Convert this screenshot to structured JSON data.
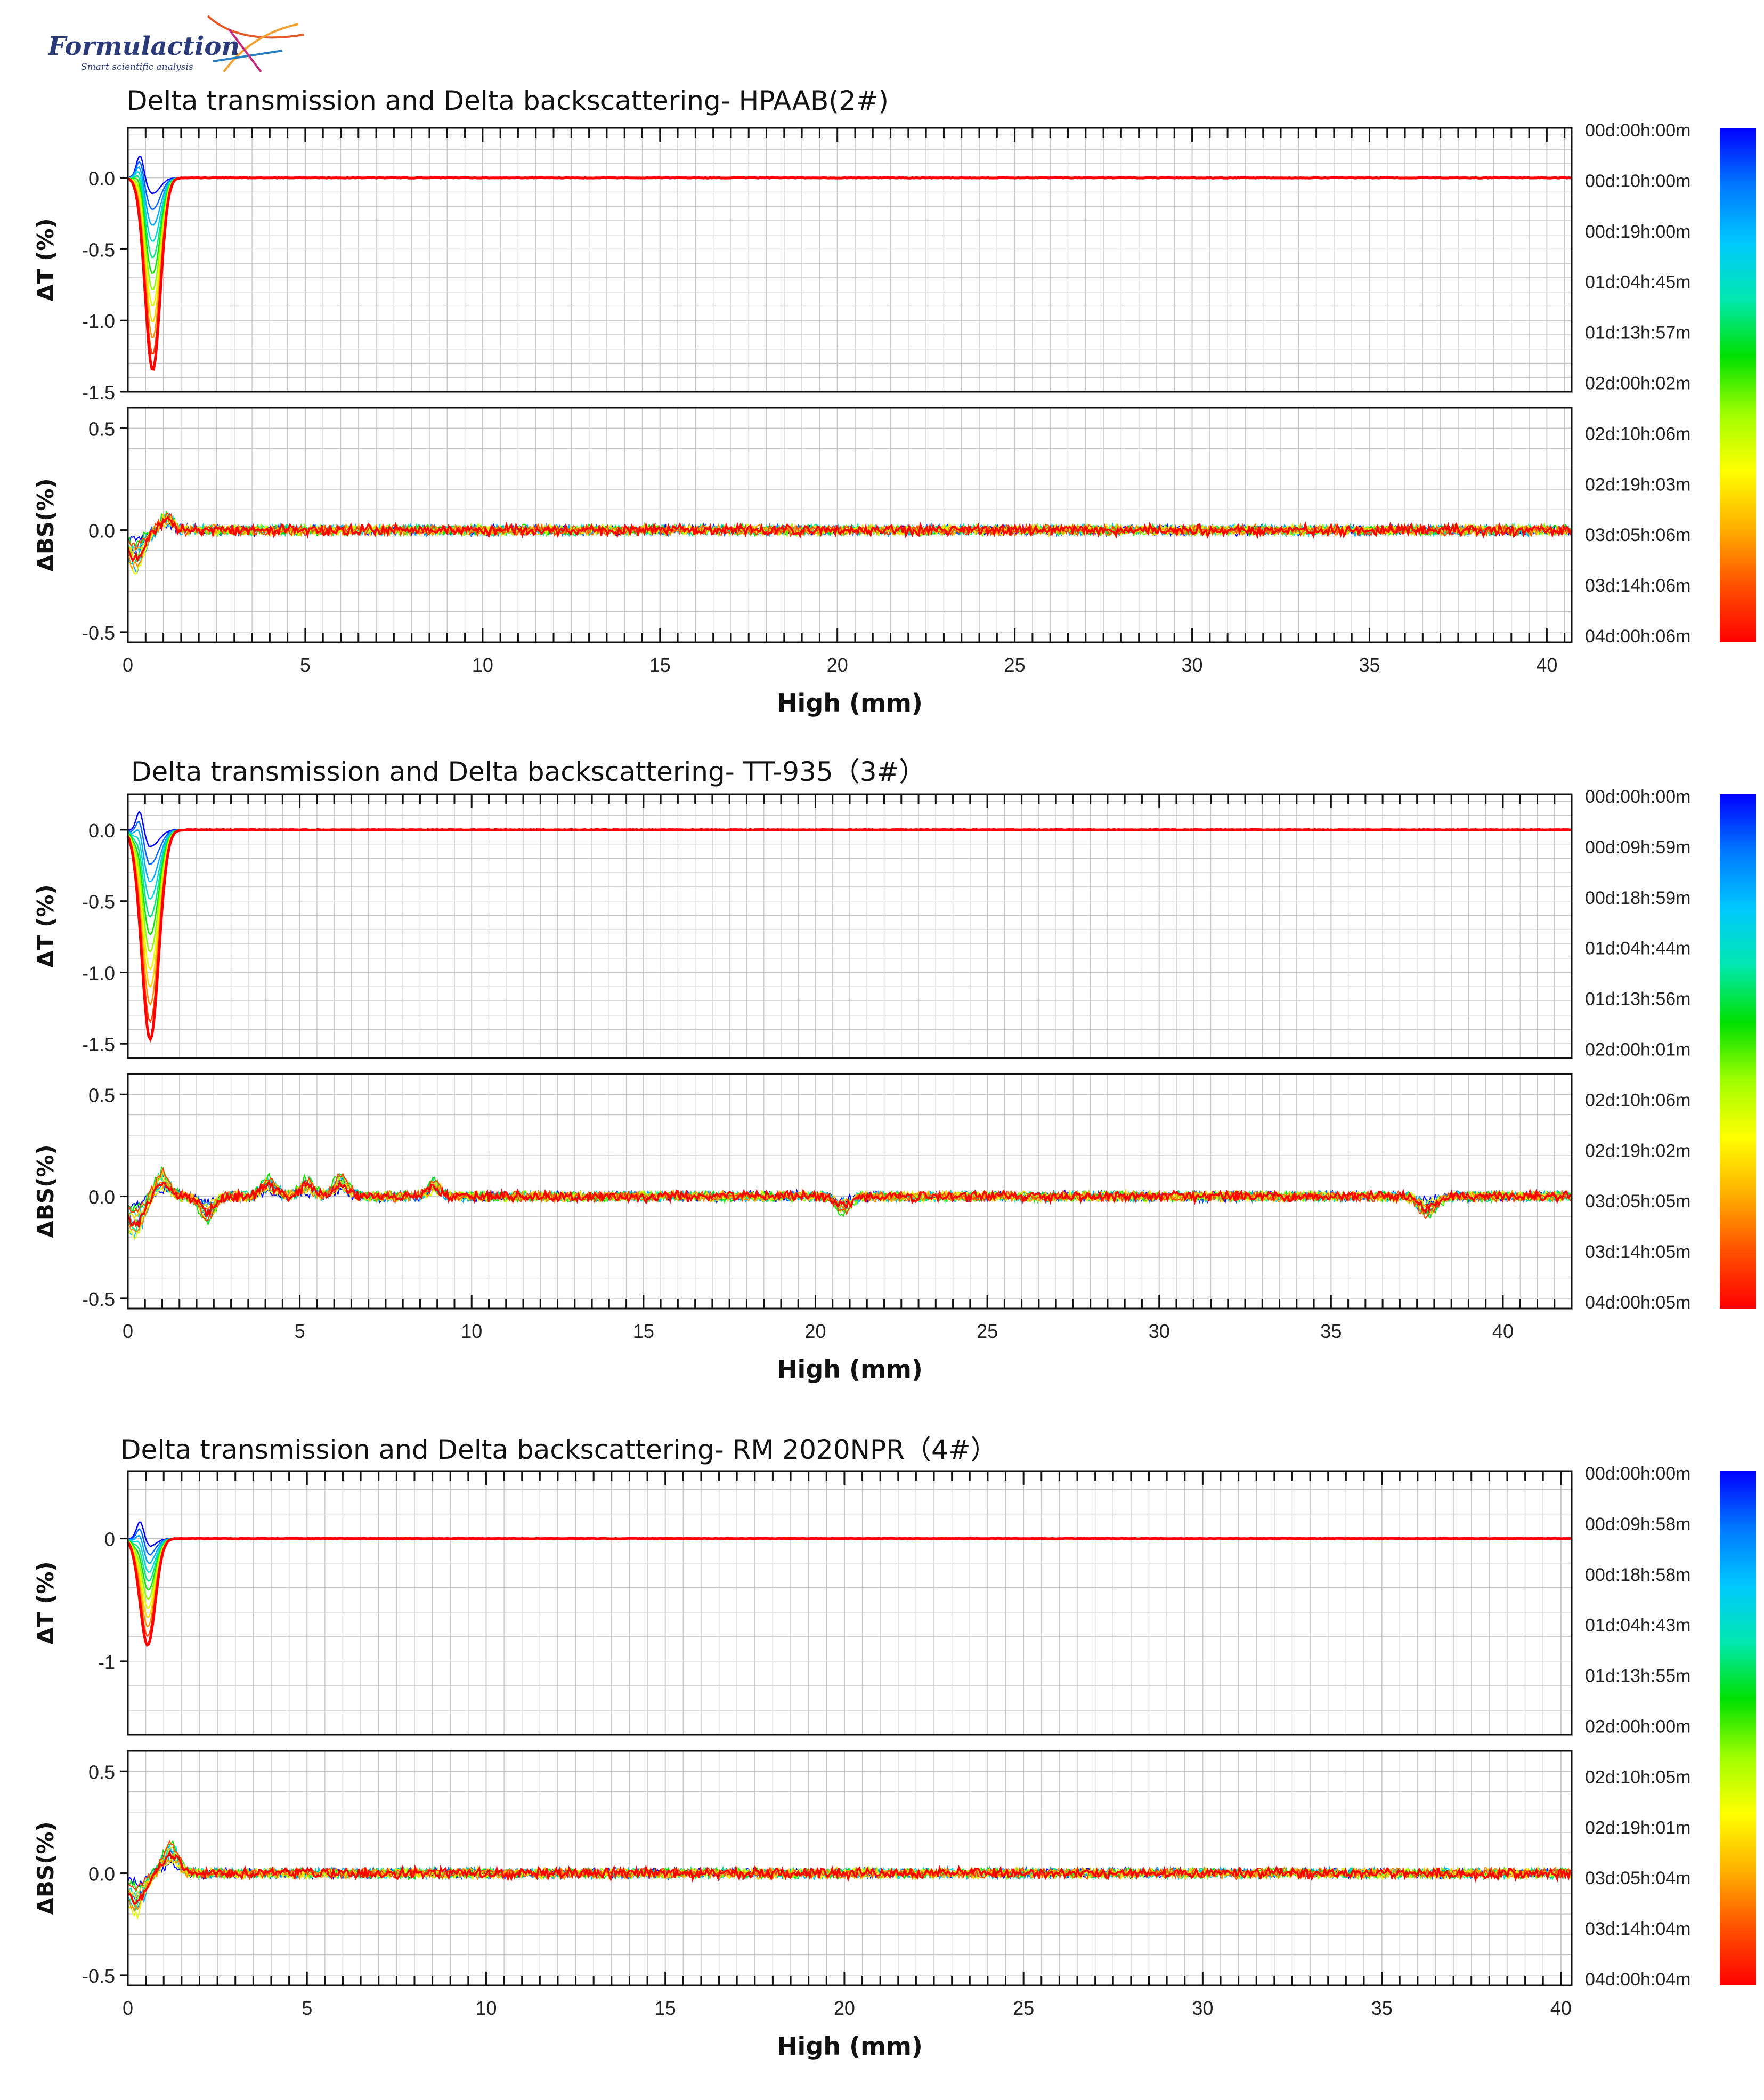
{
  "logo": {
    "brand": "Formulaction",
    "tagline": "Smart scientific analysis",
    "colors": {
      "brand_text": "#2b3b7a",
      "tagline_text": "#2b3b7a"
    }
  },
  "colors": {
    "frame": "#111111",
    "grid": "#c8c8c8",
    "gradient": [
      "#0000ff",
      "#0078ff",
      "#00c8ff",
      "#00e8b0",
      "#00e000",
      "#a0ff00",
      "#ffff00",
      "#ffb000",
      "#ff5000",
      "#ff0000"
    ]
  },
  "chart_data": [
    {
      "id": "p2",
      "type": "line",
      "title": "Delta transmission and Delta backscattering- HPAAB(2#)",
      "xlabel": "High (mm)",
      "xlim": [
        0,
        40.7
      ],
      "xticks": [
        "0",
        "5",
        "10",
        "15",
        "20",
        "25",
        "30",
        "35",
        "40"
      ],
      "xtick_values": [
        0,
        5,
        10,
        15,
        20,
        25,
        30,
        35,
        40
      ],
      "top": {
        "ylabel": "ΔT (%)",
        "ylim": [
          -1.5,
          0.35
        ],
        "ytick_values": [
          0.0,
          -0.5,
          -1.0,
          -1.5
        ],
        "yticks": [
          "0.0",
          "-0.5",
          "-1.0",
          "-1.5"
        ],
        "peak": {
          "center": 0.7,
          "width": 0.3,
          "depth": 1.35
        }
      },
      "bottom": {
        "ylabel": "ΔBS(%)",
        "ylim": [
          -0.55,
          0.6
        ],
        "ytick_values": [
          0.5,
          0.0,
          -0.5
        ],
        "yticks": [
          "0.5",
          "0.0",
          "-0.5"
        ],
        "noise": 0.02,
        "features": [
          {
            "center": 1.1,
            "width": 0.25,
            "amp": 0.08
          }
        ]
      },
      "legend": [
        "00d:00h:00m",
        "00d:10h:00m",
        "00d:19h:00m",
        "01d:04h:45m",
        "01d:13h:57m",
        "02d:00h:02m",
        "02d:10h:06m",
        "02d:19h:03m",
        "03d:05h:06m",
        "03d:14h:06m",
        "04d:00h:06m"
      ]
    },
    {
      "id": "p3",
      "type": "line",
      "title": "Delta transmission and Delta backscattering- TT-935（3#）",
      "xlabel": "High (mm)",
      "xlim": [
        0,
        42
      ],
      "xticks": [
        "0",
        "5",
        "10",
        "15",
        "20",
        "25",
        "30",
        "35",
        "40"
      ],
      "xtick_values": [
        0,
        5,
        10,
        15,
        20,
        25,
        30,
        35,
        40
      ],
      "top": {
        "ylabel": "ΔT (%)",
        "ylim": [
          -1.6,
          0.25
        ],
        "ytick_values": [
          0.0,
          -0.5,
          -1.0,
          -1.5
        ],
        "yticks": [
          "0.0",
          "-0.5",
          "-1.0",
          "-1.5"
        ],
        "peak": {
          "center": 0.65,
          "width": 0.35,
          "depth": 1.47
        }
      },
      "bottom": {
        "ylabel": "ΔBS(%)",
        "ylim": [
          -0.55,
          0.6
        ],
        "ytick_values": [
          0.5,
          0.0,
          -0.5
        ],
        "yticks": [
          "0.5",
          "0.0",
          "-0.5"
        ],
        "noise": 0.02,
        "features": [
          {
            "center": 1.0,
            "width": 0.3,
            "amp": 0.12
          },
          {
            "center": 2.3,
            "width": 0.3,
            "amp": -0.12
          },
          {
            "center": 4.1,
            "width": 0.3,
            "amp": 0.09
          },
          {
            "center": 5.2,
            "width": 0.3,
            "amp": 0.08
          },
          {
            "center": 6.2,
            "width": 0.3,
            "amp": 0.1
          },
          {
            "center": 8.9,
            "width": 0.25,
            "amp": 0.08
          },
          {
            "center": 20.8,
            "width": 0.3,
            "amp": -0.08
          },
          {
            "center": 37.8,
            "width": 0.35,
            "amp": -0.09
          }
        ]
      },
      "legend": [
        "00d:00h:00m",
        "00d:09h:59m",
        "00d:18h:59m",
        "01d:04h:44m",
        "01d:13h:56m",
        "02d:00h:01m",
        "02d:10h:06m",
        "02d:19h:02m",
        "03d:05h:05m",
        "03d:14h:05m",
        "04d:00h:05m"
      ]
    },
    {
      "id": "p4",
      "type": "line",
      "title": "Delta transmission and Delta backscattering- RM 2020NPR（4#）",
      "xlabel": "High (mm)",
      "xlim": [
        0,
        40.3
      ],
      "xticks": [
        "0",
        "5",
        "10",
        "15",
        "20",
        "25",
        "30",
        "35",
        "40"
      ],
      "xtick_values": [
        0,
        5,
        10,
        15,
        20,
        25,
        30,
        35,
        40
      ],
      "top": {
        "ylabel": "ΔT (%)",
        "ylim": [
          -1.6,
          0.55
        ],
        "ytick_values": [
          0,
          -1
        ],
        "yticks": [
          "0",
          "-1"
        ],
        "peak": {
          "center": 0.55,
          "width": 0.3,
          "depth": 0.87
        }
      },
      "bottom": {
        "ylabel": "ΔBS(%)",
        "ylim": [
          -0.55,
          0.6
        ],
        "ytick_values": [
          0.5,
          0.0,
          -0.5
        ],
        "yticks": [
          "0.5",
          "0.0",
          "-0.5"
        ],
        "noise": 0.02,
        "features": [
          {
            "center": 1.2,
            "width": 0.3,
            "amp": 0.15
          }
        ]
      },
      "legend": [
        "00d:00h:00m",
        "00d:09h:58m",
        "00d:18h:58m",
        "01d:04h:43m",
        "01d:13h:55m",
        "02d:00h:00m",
        "02d:10h:05m",
        "02d:19h:01m",
        "03d:05h:04m",
        "03d:14h:04m",
        "04d:00h:04m"
      ]
    }
  ]
}
